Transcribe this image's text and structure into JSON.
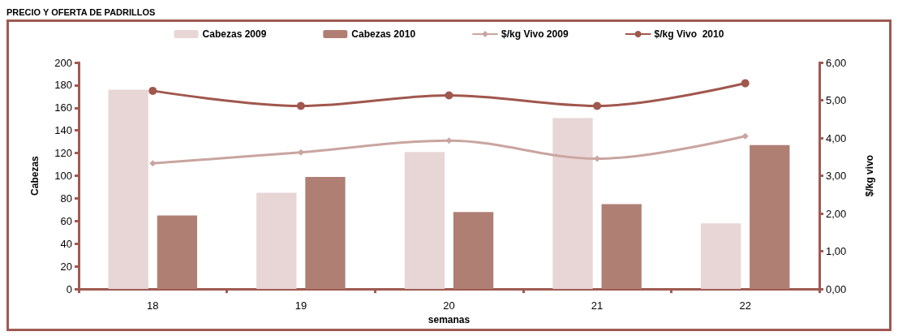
{
  "chart_data": {
    "type": "bar",
    "title": "PRECIO Y OFERTA DE PADRILLOS",
    "xlabel": "semanas",
    "ylabel": "Cabezas",
    "y2label": "$/kg vivo",
    "categories": [
      "18",
      "19",
      "20",
      "21",
      "22"
    ],
    "series": [
      {
        "name": "Cabezas 2009",
        "color": "#e8d5d5",
        "values": [
          176,
          85,
          121,
          151,
          58
        ]
      },
      {
        "name": "Cabezas 2010",
        "color": "#b07f74",
        "values": [
          65,
          99,
          68,
          75,
          127
        ]
      },
      {
        "name": "$/kg Vivo 2009",
        "type": "line",
        "axis": "y2",
        "marker": "diamond",
        "color": "#c9a5a0",
        "values": [
          3.33,
          3.62,
          3.93,
          3.45,
          4.05
        ]
      },
      {
        "name": "$/kg Vivo  2010",
        "type": "line",
        "axis": "y2",
        "marker": "circle",
        "color": "#a0574d",
        "values": [
          5.25,
          4.85,
          5.13,
          4.85,
          5.45
        ]
      }
    ],
    "ylim": [
      0,
      200
    ],
    "yticks": [
      0,
      20,
      40,
      60,
      80,
      100,
      120,
      140,
      160,
      180,
      200
    ],
    "y2lim": [
      0,
      6
    ],
    "y2ticks": [
      {
        "value": 0,
        "label": "0,00"
      },
      {
        "value": 1,
        "label": "1,00"
      },
      {
        "value": 2,
        "label": "2,00"
      },
      {
        "value": 3,
        "label": "3,00"
      },
      {
        "value": 4,
        "label": "4,00"
      },
      {
        "value": 5,
        "label": "5,00"
      },
      {
        "value": 6,
        "label": "6,00"
      }
    ],
    "grid": false,
    "legend": "top",
    "line_style": "solid"
  }
}
